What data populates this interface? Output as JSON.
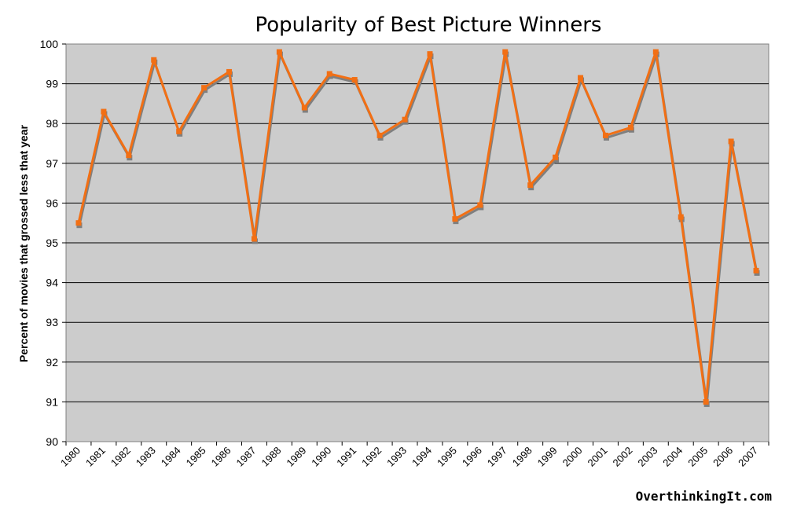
{
  "chart_data": {
    "type": "line",
    "title": "Popularity of Best Picture Winners",
    "xlabel": "",
    "ylabel": "Percent of movies that grossed less that year",
    "ylim": [
      90,
      100
    ],
    "yticks": [
      "90",
      "91",
      "92",
      "93",
      "94",
      "95",
      "96",
      "97",
      "98",
      "99",
      "100"
    ],
    "grid": true,
    "categories": [
      "1980",
      "1981",
      "1982",
      "1983",
      "1984",
      "1985",
      "1986",
      "1987",
      "1988",
      "1989",
      "1990",
      "1991",
      "1992",
      "1993",
      "1994",
      "1995",
      "1996",
      "1997",
      "1998",
      "1999",
      "2000",
      "2001",
      "2002",
      "2003",
      "2004",
      "2005",
      "2006",
      "2007"
    ],
    "values": [
      95.5,
      98.3,
      97.2,
      99.6,
      97.8,
      98.9,
      99.3,
      95.1,
      99.8,
      98.4,
      99.25,
      99.1,
      97.7,
      98.1,
      99.75,
      95.6,
      95.95,
      99.8,
      96.45,
      97.15,
      99.15,
      97.7,
      97.9,
      99.8,
      95.65,
      91.0,
      97.55,
      94.3
    ],
    "colors": {
      "line": "#f26f14",
      "shadow": "#7f7f7f",
      "plot_background": "#cccccc",
      "gridline": "#000000"
    }
  },
  "credit": "OverthinkingIt.com"
}
